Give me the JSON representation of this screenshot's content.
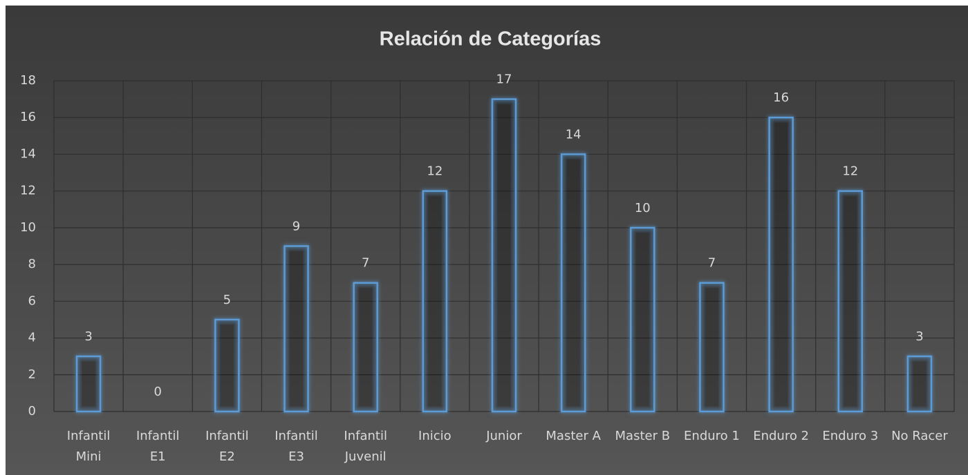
{
  "chart_data": {
    "type": "bar",
    "title": "Relación de Categorías",
    "categories": [
      [
        "Infantil",
        "Mini"
      ],
      [
        "Infantil",
        "E1"
      ],
      [
        "Infantil",
        "E2"
      ],
      [
        "Infantil",
        "E3"
      ],
      [
        "Infantil",
        "Juvenil"
      ],
      [
        "Inicio"
      ],
      [
        "Junior"
      ],
      [
        "Master A"
      ],
      [
        "Master B"
      ],
      [
        "Enduro 1"
      ],
      [
        "Enduro 2"
      ],
      [
        "Enduro 3"
      ],
      [
        "No Racer"
      ]
    ],
    "values": [
      3,
      0,
      5,
      9,
      7,
      12,
      17,
      14,
      10,
      7,
      16,
      12,
      3
    ],
    "color": "#5b9bd5",
    "ylim": [
      0,
      18
    ],
    "yticks": [
      0,
      2,
      4,
      6,
      8,
      10,
      12,
      14,
      16,
      18
    ],
    "grid": true
  }
}
